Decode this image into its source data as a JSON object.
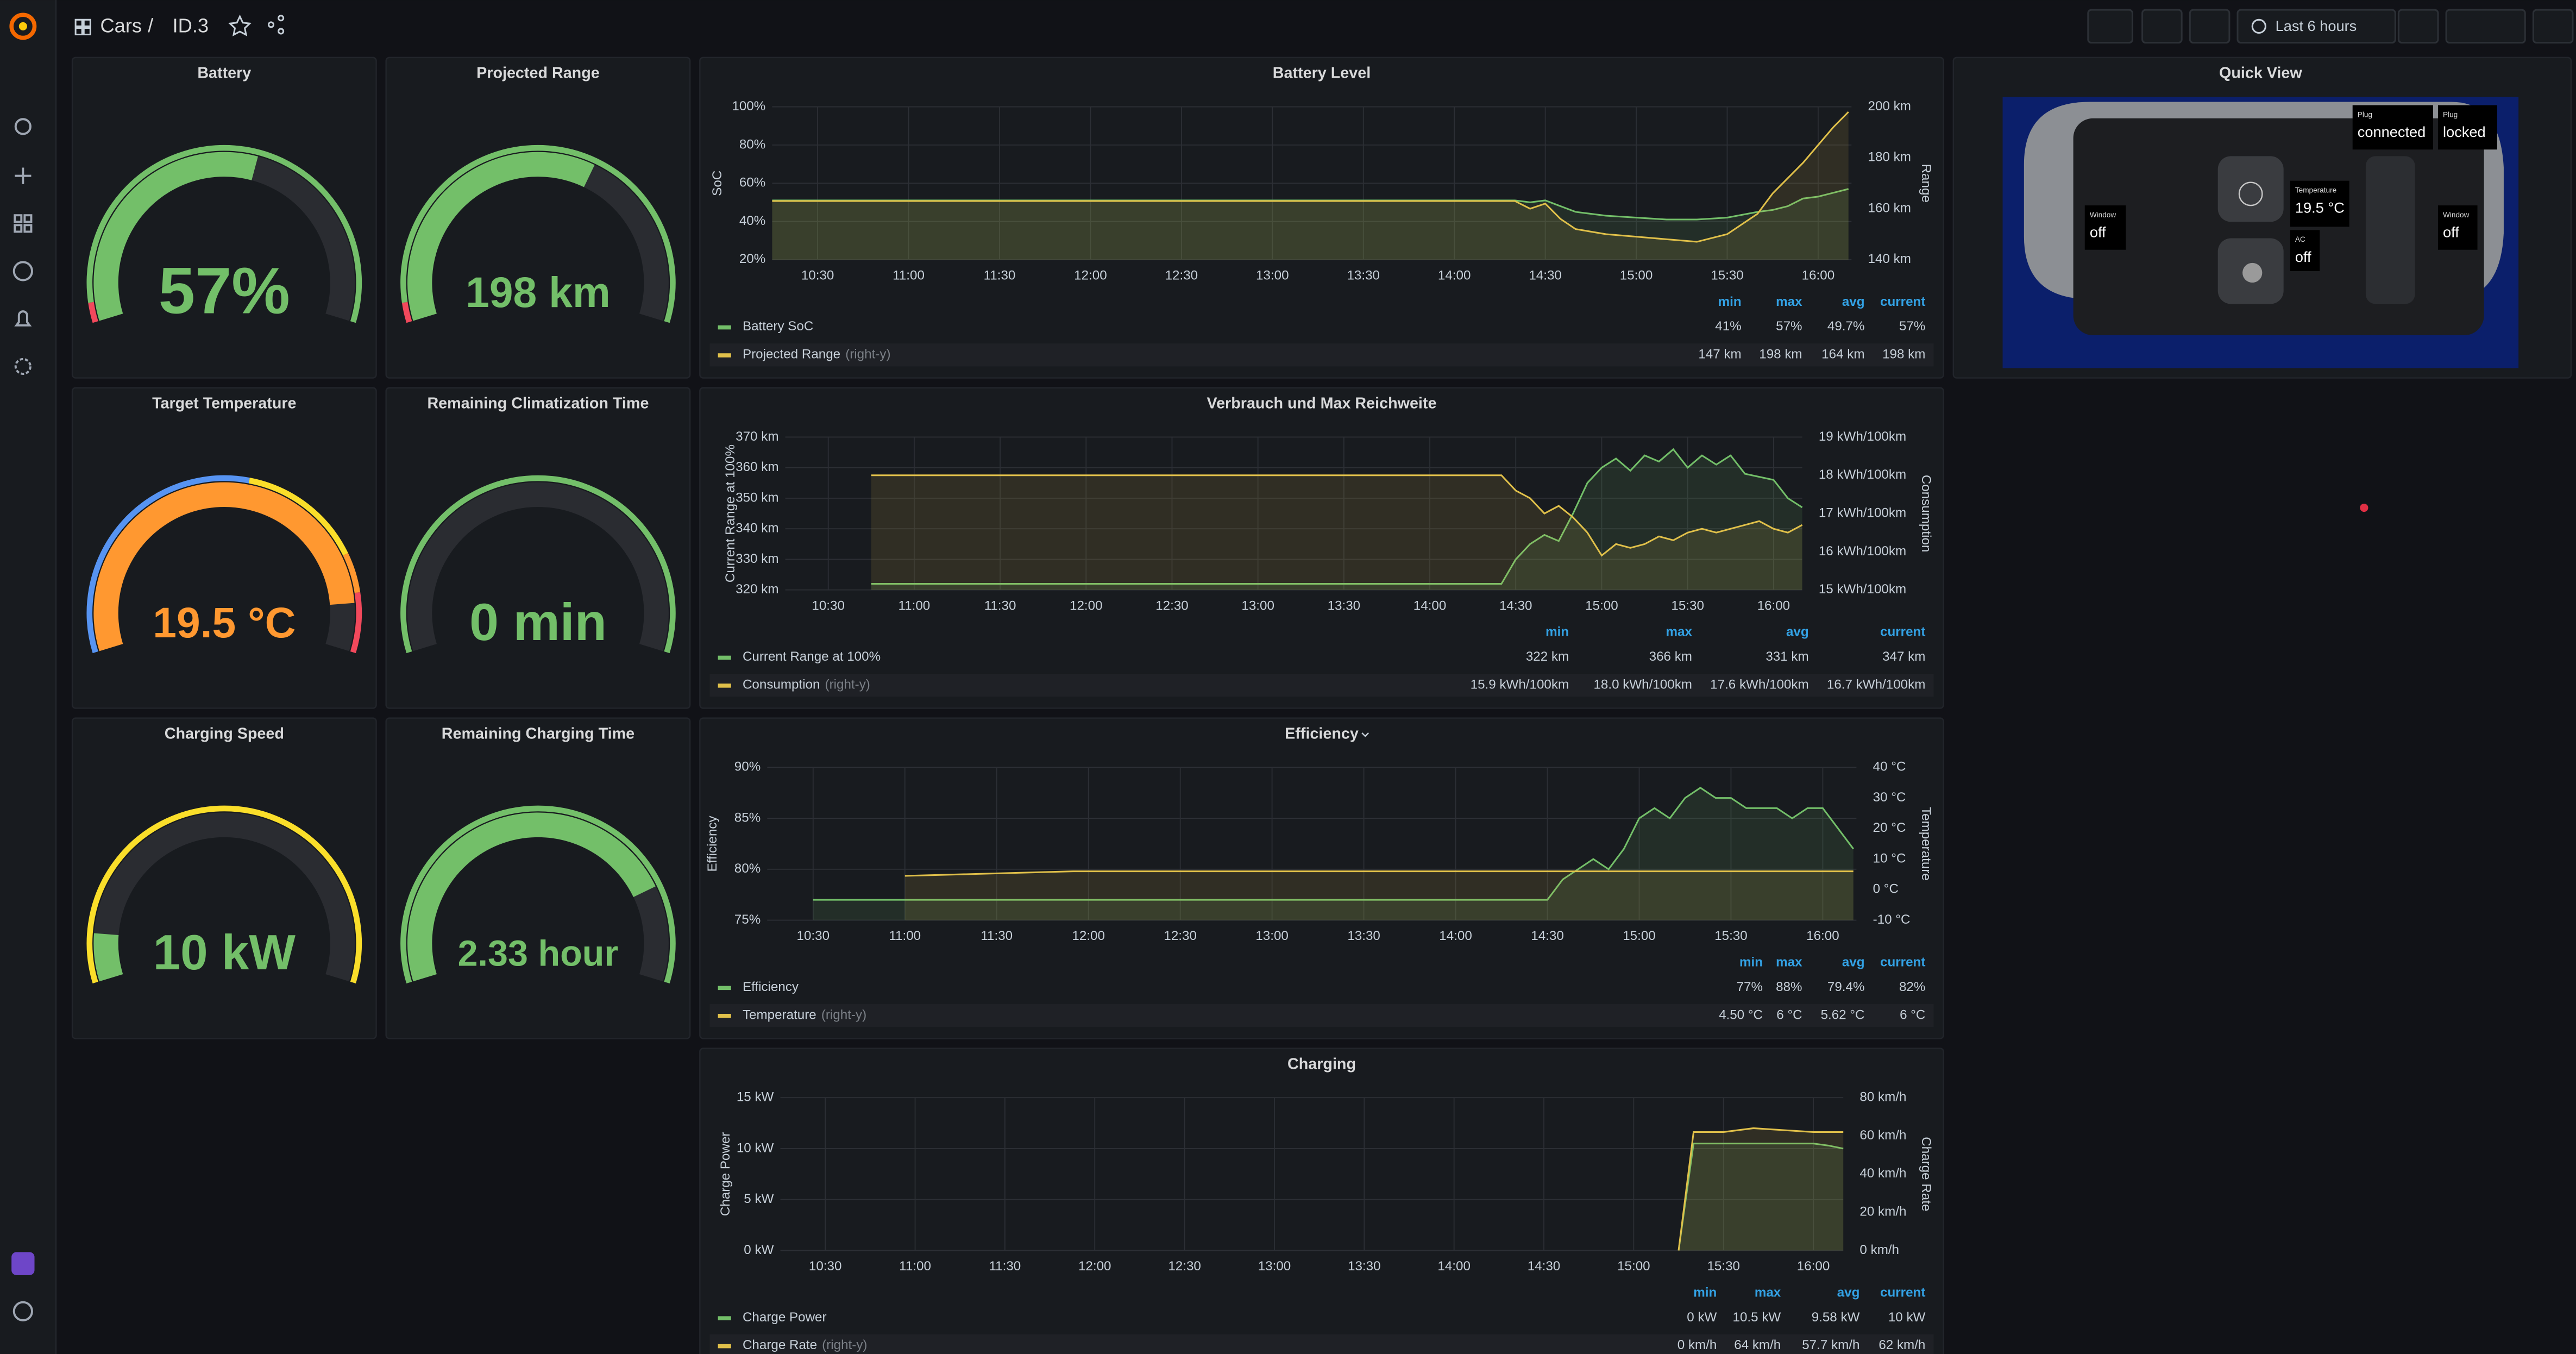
{
  "header": {
    "breadcrumb": [
      "Cars",
      "/",
      "ID.3"
    ],
    "time_range": "Last 6 hours"
  },
  "gauges": [
    {
      "title": "Battery",
      "value": "57%"
    },
    {
      "title": "Projected Range",
      "value": "198 km"
    },
    {
      "title": "Target Temperature",
      "value": "19.5 °C"
    },
    {
      "title": "Remaining Climatization Time",
      "value": "0 min"
    },
    {
      "title": "Charging Speed",
      "value": "10 kW"
    },
    {
      "title": "Remaining Charging Time",
      "value": "2.33 hour"
    }
  ],
  "charts": [
    {
      "type": "line",
      "title": "Battery Level",
      "y_label": "SoC",
      "y2_label": "Range",
      "x": [
        "10:15",
        "14:20",
        "14:25",
        "14:30",
        "14:35",
        "14:40",
        "14:50",
        "15:00",
        "15:10",
        "15:20",
        "15:30",
        "15:40",
        "15:45",
        "15:50",
        "15:55",
        "16:00",
        "16:05",
        "16:10"
      ],
      "xlim": [
        "10:15",
        "16:11"
      ],
      "xticks": [
        "10:30",
        "11:00",
        "11:30",
        "12:00",
        "12:30",
        "13:00",
        "13:30",
        "14:00",
        "14:30",
        "15:00",
        "15:30",
        "16:00"
      ],
      "ylim": [
        20,
        100
      ],
      "yticks": [
        {
          "value": 20,
          "label": "20%"
        },
        {
          "value": 40,
          "label": "40%"
        },
        {
          "value": 60,
          "label": "60%"
        },
        {
          "value": 80,
          "label": "80%"
        },
        {
          "value": 100,
          "label": "100%"
        }
      ],
      "y2lim": [
        140,
        200
      ],
      "y2ticks": [
        {
          "value": 140,
          "label": "140 km"
        },
        {
          "value": 160,
          "label": "160 km"
        },
        {
          "value": 180,
          "label": "180 km"
        },
        {
          "value": 200,
          "label": "200 km"
        }
      ],
      "legend_columns": [
        "min",
        "max",
        "avg",
        "current"
      ],
      "series": [
        {
          "name": "Battery SoC",
          "color": "#73bf69",
          "values": [
            51,
            51,
            50,
            51,
            48,
            45,
            43,
            42,
            41,
            41,
            42,
            45,
            46,
            48,
            52,
            53,
            55,
            57
          ],
          "stats": [
            "41%",
            "57%",
            "49.7%",
            "57%"
          ]
        },
        {
          "name": "Projected Range",
          "axis": "y2",
          "axis_note": "(right-y)",
          "color": "#e0c04a",
          "values": [
            163,
            163,
            160,
            162,
            156,
            152,
            150,
            149,
            148,
            147,
            150,
            158,
            166,
            172,
            178,
            185,
            192,
            198
          ],
          "stats": [
            "147 km",
            "198 km",
            "164 km",
            "198 km"
          ]
        }
      ]
    },
    {
      "type": "line",
      "title": "Verbrauch und Max Reichweite",
      "y_label": "Current Range at 100%",
      "y2_label": "Consumption",
      "x": [
        "10:45",
        "14:25",
        "14:30",
        "14:35",
        "14:40",
        "14:45",
        "14:50",
        "14:55",
        "15:00",
        "15:05",
        "15:10",
        "15:15",
        "15:20",
        "15:25",
        "15:30",
        "15:35",
        "15:40",
        "15:45",
        "15:50",
        "15:55",
        "16:00",
        "16:05",
        "16:10"
      ],
      "xlim": [
        "10:15",
        "16:10"
      ],
      "xticks": [
        "10:30",
        "11:00",
        "11:30",
        "12:00",
        "12:30",
        "13:00",
        "13:30",
        "14:00",
        "14:30",
        "15:00",
        "15:30",
        "16:00"
      ],
      "ylim": [
        320,
        370
      ],
      "yticks": [
        {
          "value": 320,
          "label": "320 km"
        },
        {
          "value": 330,
          "label": "330 km"
        },
        {
          "value": 340,
          "label": "340 km"
        },
        {
          "value": 350,
          "label": "350 km"
        },
        {
          "value": 360,
          "label": "360 km"
        },
        {
          "value": 370,
          "label": "370 km"
        }
      ],
      "y2lim": [
        15,
        19
      ],
      "y2ticks": [
        {
          "value": 15,
          "label": "15 kWh/100km"
        },
        {
          "value": 16,
          "label": "16 kWh/100km"
        },
        {
          "value": 17,
          "label": "17 kWh/100km"
        },
        {
          "value": 18,
          "label": "18 kWh/100km"
        },
        {
          "value": 19,
          "label": "19 kWh/100km"
        }
      ],
      "legend_columns": [
        "min",
        "max",
        "avg",
        "current"
      ],
      "series": [
        {
          "name": "Current Range at 100%",
          "color": "#73bf69",
          "values": [
            322,
            322,
            330,
            335,
            338,
            336,
            345,
            355,
            360,
            363,
            359,
            364,
            362,
            366,
            360,
            364,
            361,
            364,
            358,
            357,
            356,
            350,
            347
          ],
          "stats": [
            "322 km",
            "366 km",
            "331 km",
            "347 km"
          ]
        },
        {
          "name": "Consumption",
          "axis": "y2",
          "axis_note": "(right-y)",
          "color": "#e0c04a",
          "values": [
            18.0,
            18.0,
            17.6,
            17.4,
            17.0,
            17.2,
            16.9,
            16.5,
            15.9,
            16.2,
            16.1,
            16.2,
            16.4,
            16.3,
            16.5,
            16.6,
            16.5,
            16.6,
            16.7,
            16.8,
            16.6,
            16.5,
            16.7
          ],
          "stats": [
            "15.9 kWh/100km",
            "18.0 kWh/100km",
            "17.6 kWh/100km",
            "16.7 kWh/100km"
          ]
        }
      ]
    },
    {
      "type": "line",
      "title": "Efficiency",
      "y_label": "Efficiency",
      "y2_label": "Temperature",
      "x": [
        "10:30",
        "11:00",
        "11:55",
        "13:00",
        "14:30",
        "14:35",
        "14:40",
        "14:45",
        "14:50",
        "14:55",
        "15:00",
        "15:05",
        "15:10",
        "15:15",
        "15:20",
        "15:25",
        "15:30",
        "15:35",
        "15:40",
        "15:45",
        "15:50",
        "15:55",
        "16:00",
        "16:05",
        "16:10"
      ],
      "xlim": [
        "10:15",
        "16:11"
      ],
      "xticks": [
        "10:30",
        "11:00",
        "11:30",
        "12:00",
        "12:30",
        "13:00",
        "13:30",
        "14:00",
        "14:30",
        "15:00",
        "15:30",
        "16:00"
      ],
      "ylim": [
        75,
        90
      ],
      "yticks": [
        {
          "value": 75,
          "label": "75%"
        },
        {
          "value": 80,
          "label": "80%"
        },
        {
          "value": 85,
          "label": "85%"
        },
        {
          "value": 90,
          "label": "90%"
        }
      ],
      "y2lim": [
        -10,
        40
      ],
      "y2ticks": [
        {
          "value": -10,
          "label": "-10 °C"
        },
        {
          "value": 0,
          "label": "0 °C"
        },
        {
          "value": 10,
          "label": "10 °C"
        },
        {
          "value": 20,
          "label": "20 °C"
        },
        {
          "value": 30,
          "label": "30 °C"
        },
        {
          "value": 40,
          "label": "40 °C"
        }
      ],
      "legend_columns": [
        "min",
        "max",
        "avg",
        "current"
      ],
      "series": [
        {
          "name": "Efficiency",
          "color": "#73bf69",
          "values": [
            77,
            77,
            77,
            77,
            77,
            79,
            80,
            81,
            80,
            82,
            85,
            86,
            85,
            87,
            88,
            87,
            87,
            86,
            86,
            86,
            85,
            86,
            86,
            84,
            82
          ],
          "stats": [
            "77%",
            "88%",
            "79.4%",
            "82%"
          ]
        },
        {
          "name": "Temperature",
          "axis": "y2",
          "axis_note": "(right-y)",
          "color": "#e0c04a",
          "values": [
            null,
            4.5,
            6,
            6,
            6,
            6,
            6,
            6,
            6,
            6,
            6,
            6,
            6,
            6,
            6,
            6,
            6,
            6,
            6,
            6,
            6,
            6,
            6,
            6,
            6
          ],
          "stats": [
            "4.50 °C",
            "6 °C",
            "5.62 °C",
            "6 °C"
          ]
        }
      ]
    },
    {
      "type": "line",
      "title": "Charging",
      "y_label": "Charge Power",
      "y2_label": "Charge Rate",
      "x": [
        "15:15",
        "15:20",
        "15:30",
        "15:40",
        "15:50",
        "16:00",
        "16:05",
        "16:10"
      ],
      "xlim": [
        "10:15",
        "16:10"
      ],
      "xticks": [
        "10:30",
        "11:00",
        "11:30",
        "12:00",
        "12:30",
        "13:00",
        "13:30",
        "14:00",
        "14:30",
        "15:00",
        "15:30",
        "16:00"
      ],
      "ylim": [
        0,
        15
      ],
      "yticks": [
        {
          "value": 0,
          "label": "0 kW"
        },
        {
          "value": 5,
          "label": "5 kW"
        },
        {
          "value": 10,
          "label": "10 kW"
        },
        {
          "value": 15,
          "label": "15 kW"
        }
      ],
      "y2lim": [
        0,
        80
      ],
      "y2ticks": [
        {
          "value": 0,
          "label": "0 km/h"
        },
        {
          "value": 20,
          "label": "20 km/h"
        },
        {
          "value": 40,
          "label": "40 km/h"
        },
        {
          "value": 60,
          "label": "60 km/h"
        },
        {
          "value": 80,
          "label": "80 km/h"
        }
      ],
      "legend_columns": [
        "min",
        "max",
        "avg",
        "current"
      ],
      "series": [
        {
          "name": "Charge Power",
          "color": "#73bf69",
          "values": [
            0,
            10.5,
            10.5,
            10.5,
            10.5,
            10.5,
            10.3,
            10
          ],
          "stats": [
            "0 kW",
            "10.5 kW",
            "9.58 kW",
            "10 kW"
          ]
        },
        {
          "name": "Charge Rate",
          "axis": "y2",
          "axis_note": "(right-y)",
          "color": "#e0c04a",
          "values": [
            0,
            62,
            62,
            64,
            63,
            62,
            62,
            62
          ],
          "stats": [
            "0 km/h",
            "64 km/h",
            "57.7 km/h",
            "62 km/h"
          ]
        }
      ]
    }
  ],
  "quick_view": {
    "title": "Quick View",
    "labels": [
      {
        "caption": "Plug",
        "value": "connected"
      },
      {
        "caption": "Plug",
        "value": "locked"
      },
      {
        "caption": "Temperature",
        "value": "19.5 °C"
      },
      {
        "caption": "AC",
        "value": "off"
      },
      {
        "caption": "Window",
        "value": "off"
      },
      {
        "caption": "Window",
        "value": "off"
      }
    ]
  }
}
